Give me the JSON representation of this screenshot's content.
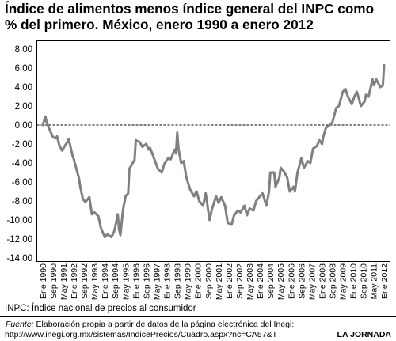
{
  "note": "INPC: Índice nacional de precios al consumidor",
  "source": {
    "label": "Fuente:",
    "text": "Elaboración propia a partir de datos de la página electrónica del Inegi:",
    "url": "http://www.inegi.org.mx/sistemas/IndicePrecios/Cuadro.aspx?nc=CA57&T"
  },
  "credit": "LA JORNADA",
  "colors": {
    "series": "#808080",
    "frame": "#000000",
    "zero_line": "#000000"
  },
  "chart_data": {
    "type": "line",
    "title": "Índice de alimentos menos índice general del INPC como % del primero. México, enero 1990 a enero 2012",
    "xlim": [
      "1990-01",
      "2012-01"
    ],
    "ylim": [
      -14,
      8
    ],
    "yticks": [
      "8.00",
      "6.00",
      "4.00",
      "2.00",
      "0.00",
      "-2.00",
      "-4.00",
      "-6.00",
      "-8.00",
      "-10.00",
      "-12.00",
      "-14.00"
    ],
    "xticks": [
      "Ene 1990",
      "Sep 1990",
      "May 1991",
      "Ene 1992",
      "Sep 1992",
      "May 1993",
      "Ene 1994",
      "Sep 1994",
      "May 1995",
      "Ene 1996",
      "Sep 1996",
      "May 1997",
      "Ene 1998",
      "Sep 1998",
      "May 1999",
      "Ene 2000",
      "Sep 2000",
      "May 2001",
      "Ene 2002",
      "Sep 2002",
      "May 2003",
      "Ene 2004",
      "Sep 2004",
      "May 2005",
      "Ene 2006",
      "Sep 2006",
      "May 2007",
      "Ene 2008",
      "Sep 2008",
      "May 2009",
      "Ene 2010",
      "Sep 2010",
      "May 2011",
      "Ene 2012"
    ],
    "zero_line": "dashed",
    "grid": false,
    "legend": "none",
    "series": [
      {
        "x": [
          "1990-01",
          "1990-03",
          "1990-04",
          "1990-06",
          "1990-08",
          "1990-09",
          "1990-11",
          "1990-12",
          "1991-02",
          "1991-04",
          "1991-06",
          "1991-08",
          "1991-09",
          "1991-11",
          "1991-12",
          "1992-01",
          "1992-03",
          "1992-05",
          "1992-06",
          "1992-08",
          "1992-10",
          "1993-01",
          "1993-03",
          "1993-05",
          "1993-08",
          "1993-10",
          "1994-01",
          "1994-03",
          "1994-06",
          "1994-08",
          "1994-09",
          "1994-11",
          "1994-12",
          "1995-01",
          "1995-03",
          "1995-05",
          "1995-07",
          "1995-08",
          "1995-11",
          "1995-12",
          "1996-01",
          "1996-04",
          "1996-06",
          "1996-09",
          "1996-11",
          "1996-12",
          "1997-03",
          "1997-06",
          "1997-09",
          "1997-11",
          "1998-02",
          "1998-04",
          "1998-07",
          "1998-08",
          "1998-09",
          "1998-10",
          "1998-12",
          "1999-02",
          "1999-04",
          "1999-07",
          "1999-10",
          "1999-12",
          "2000-02",
          "2000-05",
          "2000-07",
          "2000-10",
          "2000-12",
          "2001-03",
          "2001-05",
          "2001-07",
          "2001-10",
          "2001-12",
          "2002-03",
          "2002-05",
          "2002-08",
          "2002-10",
          "2003-01",
          "2003-03",
          "2003-05",
          "2003-08",
          "2003-10",
          "2004-01",
          "2004-03",
          "2004-06",
          "2004-08",
          "2004-09",
          "2004-12",
          "2005-01",
          "2005-04",
          "2005-05",
          "2005-07",
          "2005-10",
          "2005-12",
          "2006-03",
          "2006-04",
          "2006-06",
          "2006-07",
          "2006-09",
          "2006-11",
          "2007-02",
          "2007-04",
          "2007-06",
          "2007-09",
          "2007-11",
          "2008-01",
          "2008-02",
          "2008-04",
          "2008-07",
          "2008-09",
          "2008-12",
          "2009-02",
          "2009-05",
          "2009-07",
          "2009-09",
          "2009-12",
          "2010-02",
          "2010-04",
          "2010-06",
          "2010-07",
          "2010-10",
          "2010-11",
          "2011-01",
          "2011-04",
          "2011-05",
          "2011-07",
          "2011-10",
          "2011-12",
          "2012-01"
        ],
        "y": [
          0.0,
          0.9,
          0.3,
          -0.4,
          -1.0,
          -1.3,
          -1.4,
          -1.2,
          -2.2,
          -2.7,
          -2.2,
          -1.8,
          -1.5,
          -2.6,
          -3.2,
          -3.6,
          -4.6,
          -5.6,
          -6.5,
          -7.8,
          -8.1,
          -7.6,
          -9.4,
          -9.2,
          -9.6,
          -10.9,
          -11.8,
          -11.5,
          -11.8,
          -11.3,
          -10.8,
          -9.4,
          -11.0,
          -11.6,
          -9.0,
          -7.5,
          -7.2,
          -4.6,
          -3.9,
          -3.7,
          -1.6,
          -1.8,
          -2.3,
          -2.0,
          -2.6,
          -2.4,
          -3.5,
          -4.6,
          -5.0,
          -4.1,
          -3.5,
          -3.6,
          -2.6,
          -3.0,
          -0.8,
          -2.5,
          -4.0,
          -3.8,
          -5.5,
          -6.8,
          -7.5,
          -7.0,
          -8.0,
          -8.5,
          -7.2,
          -10.0,
          -8.8,
          -7.5,
          -8.2,
          -7.6,
          -8.5,
          -10.3,
          -10.5,
          -9.5,
          -9.0,
          -9.2,
          -8.5,
          -9.5,
          -8.8,
          -9.0,
          -8.0,
          -7.5,
          -7.2,
          -8.5,
          -7.0,
          -5.0,
          -5.0,
          -6.5,
          -5.5,
          -4.5,
          -4.8,
          -5.5,
          -7.0,
          -6.5,
          -7.0,
          -5.0,
          -4.5,
          -3.5,
          -4.5,
          -3.8,
          -4.0,
          -2.5,
          -2.2,
          -1.6,
          -2.0,
          -1.2,
          -0.3,
          0.0,
          0.3,
          1.8,
          2.0,
          3.5,
          3.8,
          3.0,
          2.2,
          3.0,
          3.5,
          2.5,
          2.0,
          2.5,
          3.2,
          3.0,
          4.8,
          4.2,
          4.8,
          4.0,
          4.2,
          6.3
        ]
      }
    ]
  }
}
